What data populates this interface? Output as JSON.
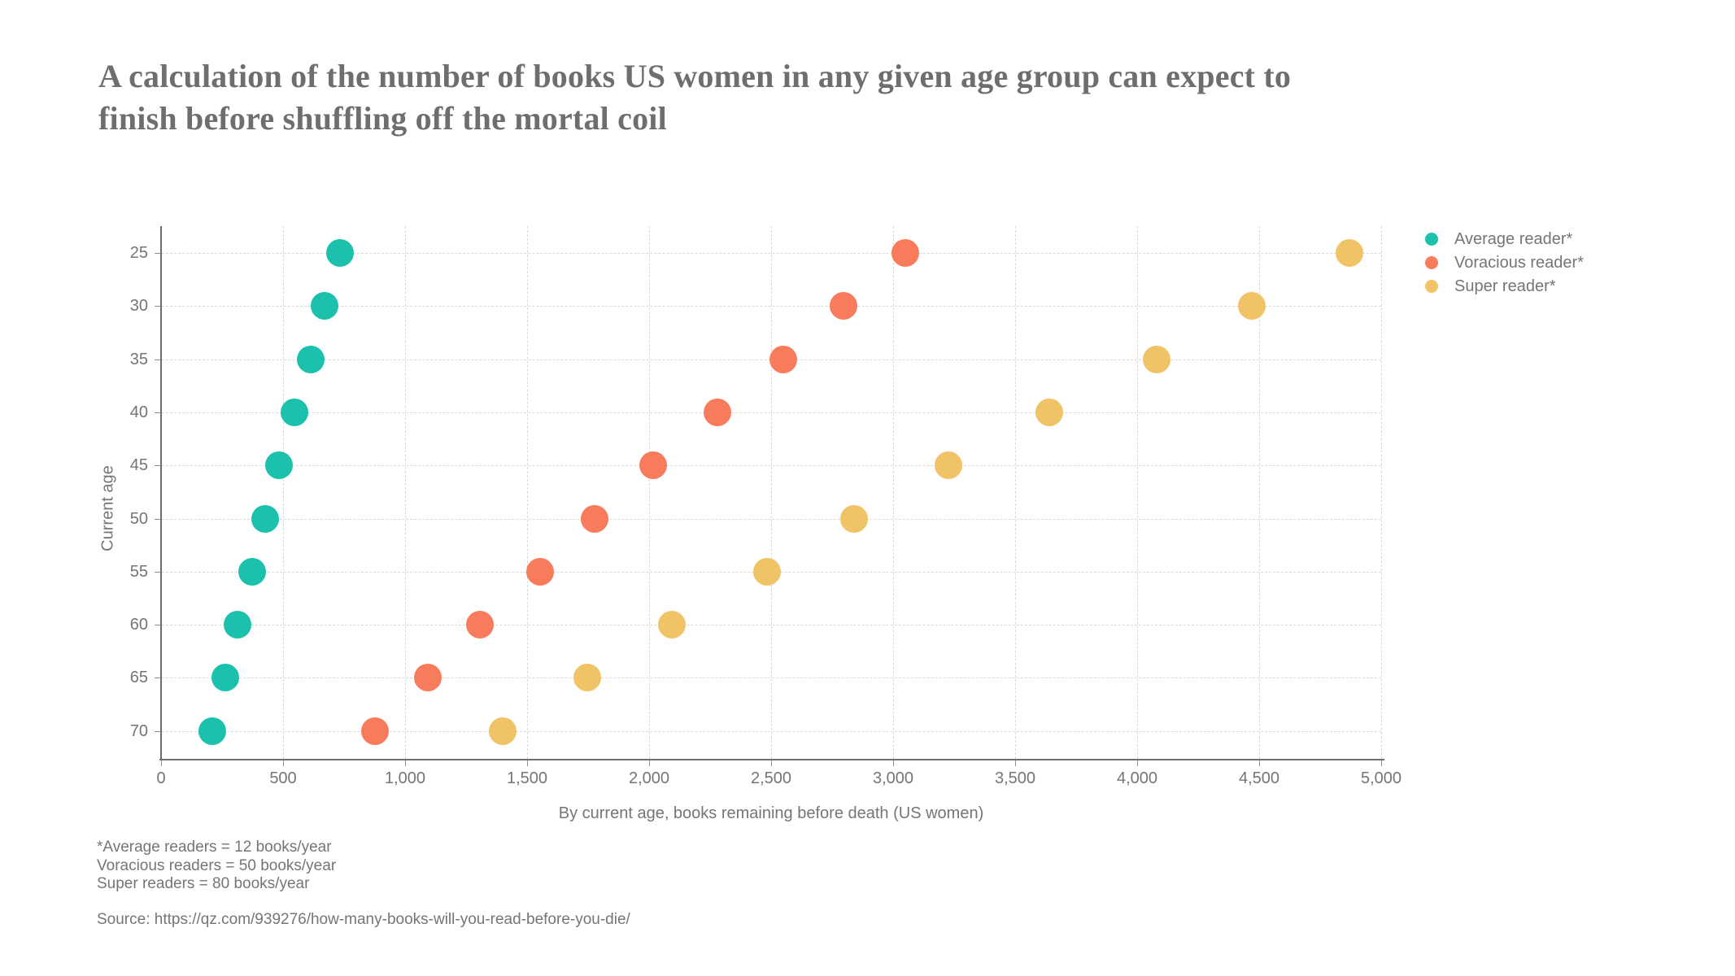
{
  "title_lines": [
    "A calculation of the number of books US women in any given age group can expect to",
    "finish before shuffling off the mortal coil"
  ],
  "footnotes": [
    "*Average readers = 12 books/year",
    "Voracious readers = 50 books/year",
    "Super readers = 80 books/year"
  ],
  "source": "Source: https://qz.com/939276/how-many-books-will-you-read-before-you-die/",
  "colors": {
    "average_reader": "#1BC1AD",
    "voracious_reader": "#F87B5C",
    "super_reader": "#F1C367",
    "text": "#757575",
    "title_text": "#6E6E6E",
    "gridline": "#D9D9D9",
    "axis": "#6F6F6F",
    "background": "#FFFFFF"
  },
  "chart_data": {
    "type": "scatter",
    "xlabel": "By current age, books remaining before death (US women)",
    "ylabel": "Current age",
    "xlim": [
      0,
      5000
    ],
    "x_tick_values": [
      0,
      500,
      1000,
      1500,
      2000,
      2500,
      3000,
      3500,
      4000,
      4500,
      5000
    ],
    "x_tick_labels": [
      "0",
      "500",
      "1,000",
      "1,500",
      "2,000",
      "2,500",
      "3,000",
      "3,500",
      "4,000",
      "4,500",
      "5,000"
    ],
    "y_categories": [
      25,
      30,
      35,
      40,
      45,
      50,
      55,
      60,
      65,
      70
    ],
    "y_axis_order": "ages listed top to bottom",
    "grid": "dashed both axes",
    "legend_position": "outside top-right",
    "series": [
      {
        "name": "Average reader*",
        "color": "#1BC1AD",
        "values": [
          732,
          671,
          612,
          547,
          484,
          426,
          373,
          314,
          262,
          210
        ]
      },
      {
        "name": "Voracious reader*",
        "color": "#F87B5C",
        "values": [
          3050,
          2795,
          2550,
          2280,
          2018,
          1775,
          1553,
          1308,
          1093,
          875
        ]
      },
      {
        "name": "Super reader*",
        "color": "#F1C367",
        "values": [
          4870,
          4470,
          4080,
          3640,
          3228,
          2840,
          2484,
          2092,
          1748,
          1400
        ]
      }
    ]
  }
}
